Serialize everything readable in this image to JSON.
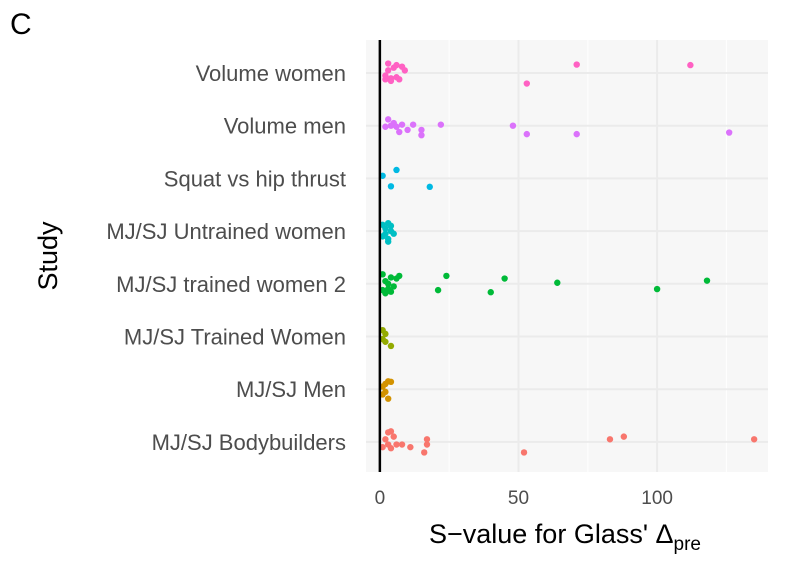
{
  "panel_label": "C",
  "chart_data": {
    "type": "scatter",
    "orientation": "horizontal-strip",
    "xlabel_main": "S−value for Glass' Δ",
    "xlabel_sub": "pre",
    "ylabel": "Study",
    "xlim": [
      -5,
      140
    ],
    "xticks": [
      0,
      50,
      100
    ],
    "grid": true,
    "legend": "none",
    "categories": [
      "Volume women",
      "Volume men",
      "Squat vs hip thrust",
      "MJ/SJ Untrained women",
      "MJ/SJ trained women 2",
      "MJ/SJ Trained Women",
      "MJ/SJ Men",
      "MJ/SJ Bodybuilders"
    ],
    "series": [
      {
        "category": "Volume women",
        "color": "#FF61C3",
        "points": [
          [
            2,
            0.12
          ],
          [
            3,
            -0.05
          ],
          [
            4,
            0.1
          ],
          [
            5,
            -0.1
          ],
          [
            6,
            0.08
          ],
          [
            7,
            0.12
          ],
          [
            6,
            -0.15
          ],
          [
            9,
            -0.05
          ],
          [
            3,
            -0.18
          ],
          [
            2,
            0.05
          ],
          [
            8,
            -0.12
          ],
          [
            4,
            0.15
          ],
          [
            53,
            0.2
          ],
          [
            71,
            -0.16
          ],
          [
            112,
            -0.15
          ]
        ]
      },
      {
        "category": "Volume men",
        "color": "#DB72FB",
        "points": [
          [
            2,
            0.02
          ],
          [
            3,
            -0.12
          ],
          [
            4,
            0.0
          ],
          [
            5,
            -0.05
          ],
          [
            6,
            0.02
          ],
          [
            7,
            0.12
          ],
          [
            8,
            -0.02
          ],
          [
            10,
            0.08
          ],
          [
            12,
            -0.02
          ],
          [
            15,
            0.18
          ],
          [
            15,
            0.08
          ],
          [
            22,
            -0.02
          ],
          [
            48,
            0.0
          ],
          [
            53,
            0.16
          ],
          [
            71,
            0.16
          ],
          [
            126,
            0.13
          ]
        ]
      },
      {
        "category": "Squat vs hip thrust",
        "color": "#00B9E3",
        "points": [
          [
            1,
            -0.05
          ],
          [
            4,
            0.15
          ],
          [
            6,
            -0.16
          ],
          [
            18,
            0.16
          ]
        ]
      },
      {
        "category": "MJ/SJ Untrained women",
        "color": "#00BFC4",
        "points": [
          [
            1,
            0.1
          ],
          [
            2,
            -0.05
          ],
          [
            3,
            0.15
          ],
          [
            4,
            -0.1
          ],
          [
            2,
            0.05
          ],
          [
            3,
            -0.15
          ],
          [
            4,
            0.0
          ],
          [
            5,
            0.05
          ],
          [
            1,
            -0.12
          ],
          [
            3,
            0.2
          ]
        ]
      },
      {
        "category": "MJ/SJ trained women 2",
        "color": "#00BA38",
        "points": [
          [
            1,
            0.12
          ],
          [
            2,
            -0.05
          ],
          [
            3,
            0.1
          ],
          [
            4,
            -0.12
          ],
          [
            2,
            0.18
          ],
          [
            3,
            0.0
          ],
          [
            5,
            0.05
          ],
          [
            6,
            -0.1
          ],
          [
            7,
            -0.15
          ],
          [
            1,
            -0.18
          ],
          [
            4,
            0.15
          ],
          [
            21,
            0.12
          ],
          [
            24,
            -0.15
          ],
          [
            40,
            0.16
          ],
          [
            45,
            -0.1
          ],
          [
            64,
            -0.02
          ],
          [
            100,
            0.1
          ],
          [
            118,
            -0.06
          ]
        ]
      },
      {
        "category": "MJ/SJ Trained Women",
        "color": "#93AA00",
        "points": [
          [
            1,
            0.05
          ],
          [
            2,
            -0.05
          ],
          [
            1,
            -0.12
          ],
          [
            2,
            0.1
          ],
          [
            4,
            0.18
          ]
        ]
      },
      {
        "category": "MJ/SJ Men",
        "color": "#D39200",
        "points": [
          [
            1,
            0.1
          ],
          [
            2,
            0.05
          ],
          [
            3,
            0.18
          ],
          [
            2,
            -0.1
          ],
          [
            3,
            -0.15
          ],
          [
            4,
            -0.14
          ],
          [
            1,
            -0.05
          ]
        ]
      },
      {
        "category": "MJ/SJ Bodybuilders",
        "color": "#F8766D",
        "points": [
          [
            1,
            0.1
          ],
          [
            2,
            -0.05
          ],
          [
            3,
            0.05
          ],
          [
            4,
            0.12
          ],
          [
            5,
            -0.1
          ],
          [
            6,
            0.05
          ],
          [
            3,
            -0.18
          ],
          [
            4,
            -0.2
          ],
          [
            8,
            0.05
          ],
          [
            11,
            0.1
          ],
          [
            16,
            0.2
          ],
          [
            17,
            0.05
          ],
          [
            17,
            -0.05
          ],
          [
            52,
            0.2
          ],
          [
            83,
            -0.05
          ],
          [
            88,
            -0.1
          ],
          [
            135,
            -0.05
          ]
        ]
      }
    ]
  }
}
